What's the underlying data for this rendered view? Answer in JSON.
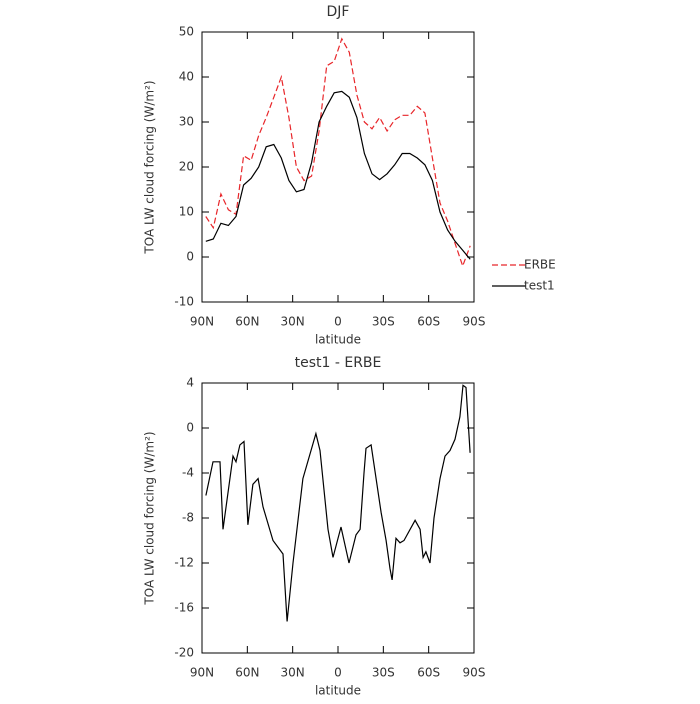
{
  "chart_data": [
    {
      "type": "line",
      "title": "DJF",
      "xlabel": "latitude",
      "ylabel": "TOA LW cloud forcing (W/m²)",
      "x": [
        87.5,
        82.5,
        77.5,
        72.5,
        67.5,
        62.5,
        57.5,
        52.5,
        47.5,
        42.5,
        37.5,
        32.5,
        27.5,
        22.5,
        17.5,
        12.5,
        7.5,
        2.5,
        -2.5,
        -7.5,
        -12.5,
        -17.5,
        -22.5,
        -27.5,
        -32.5,
        -37.5,
        -42.5,
        -47.5,
        -52.5,
        -57.5,
        -62.5,
        -67.5,
        -72.5,
        -77.5,
        -82.5,
        -87.5
      ],
      "series": [
        {
          "name": "ERBE",
          "color": "#e8262a",
          "linestyle": "dashed",
          "values": [
            9,
            6.5,
            14,
            10.5,
            9.5,
            22.5,
            21.5,
            27,
            31,
            35.5,
            40,
            31,
            20,
            17,
            18,
            28,
            42.5,
            43.5,
            48.5,
            45.5,
            36,
            30,
            28.5,
            31,
            28,
            30.5,
            31.5,
            31.5,
            33.5,
            32,
            22,
            12,
            8,
            3,
            -2,
            2.5
          ]
        },
        {
          "name": "test1",
          "color": "#000000",
          "linestyle": "solid",
          "values": [
            3.5,
            4,
            7.5,
            7,
            9,
            16,
            17.5,
            20,
            24.5,
            25,
            22,
            17,
            14.5,
            15,
            21,
            30,
            33.5,
            36.5,
            36.8,
            35.5,
            31,
            23,
            18.5,
            17.2,
            18.5,
            20.5,
            23,
            23,
            22,
            20.5,
            17,
            10,
            6,
            3.5,
            1.5,
            -0.5
          ]
        }
      ],
      "xlim": [
        90,
        -90
      ],
      "xticks": [
        {
          "value": 90,
          "label": "90N"
        },
        {
          "value": 60,
          "label": "60N"
        },
        {
          "value": 30,
          "label": "30N"
        },
        0,
        {
          "value": -30,
          "label": "30S"
        },
        {
          "value": -60,
          "label": "60S"
        },
        {
          "value": -90,
          "label": "90S"
        }
      ],
      "ylim": [
        -10,
        50
      ],
      "yticks": [
        -10,
        0,
        10,
        20,
        30,
        40,
        50
      ],
      "legend": "right"
    },
    {
      "type": "line",
      "title": "test1 - ERBE",
      "xlabel": "latitude",
      "ylabel": "TOA LW cloud forcing (W/m²)",
      "x": [
        87.4,
        82.7,
        78.1,
        76.1,
        69.5,
        67.5,
        64.9,
        62.2,
        59.6,
        56.3,
        52.9,
        49.6,
        43,
        36.4,
        33.7,
        29.8,
        23.2,
        14.6,
        11.9,
        6.6,
        3.3,
        -2,
        -7.3,
        -11.9,
        -14.6,
        -17.2,
        -18.5,
        -21.9,
        -28.5,
        -31.8,
        -34.4,
        -35.8,
        -38.4,
        -41,
        -43.7,
        -51,
        -54.3,
        -56.3,
        -58.2,
        -60.9,
        -63.5,
        -67.5,
        -70.8,
        -74.1,
        -77.4,
        -80.7,
        -82.7,
        -84.7,
        -87.4
      ],
      "values": [
        -6,
        -3,
        -3,
        -9,
        -2.5,
        -3,
        -1.5,
        -1.2,
        -8.6,
        -5,
        -4.5,
        -7,
        -10,
        -11.2,
        -17.2,
        -12,
        -4.5,
        -0.5,
        -2,
        -9,
        -11.5,
        -8.8,
        -12,
        -9.5,
        -9,
        -4,
        -1.8,
        -1.5,
        -7.5,
        -10,
        -12.5,
        -13.5,
        -9.8,
        -10.2,
        -10,
        -8.2,
        -9,
        -11.5,
        -11,
        -12,
        -8,
        -4.5,
        -2.5,
        -2,
        -1,
        1,
        3.8,
        3.6,
        -2.2
      ],
      "color": "#000000",
      "xlim": [
        90,
        -90
      ],
      "xticks": [
        {
          "value": 90,
          "label": "90N"
        },
        {
          "value": 60,
          "label": "60N"
        },
        {
          "value": 30,
          "label": "30N"
        },
        0,
        {
          "value": -30,
          "label": "30S"
        },
        {
          "value": -60,
          "label": "60S"
        },
        {
          "value": -90,
          "label": "90S"
        }
      ],
      "ylim": [
        -20,
        4
      ],
      "yticks": [
        -20,
        -16,
        -12,
        -8,
        -4,
        0,
        4
      ]
    }
  ]
}
